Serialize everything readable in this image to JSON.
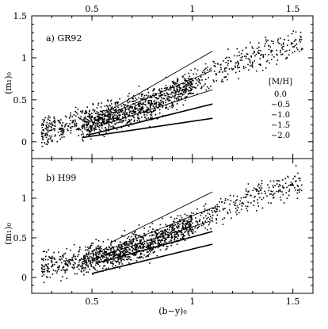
{
  "chart_data": [
    {
      "type": "scatter",
      "panel_label": "a) GR92",
      "xlabel": "",
      "ylabel": "(m₁)₀",
      "xlim": [
        0.2,
        1.6
      ],
      "ylim": [
        -0.2,
        1.5
      ],
      "x_ticks": [
        0.5,
        1,
        1.5
      ],
      "x_tick_labels": [
        "0.5",
        "1",
        "1.5"
      ],
      "x_tick_labels_position": "top",
      "y_ticks": [
        0,
        0.5,
        1,
        1.5
      ],
      "y_tick_labels": [
        "0",
        "0.5",
        "1",
        "1.5"
      ],
      "grid": false,
      "legend": {
        "title": "[M/H]",
        "placement": "right",
        "entries": [
          "0.0",
          "−0.5",
          "−1.0",
          "−1.5",
          "−2.0"
        ]
      },
      "lines": [
        {
          "metallicity": "0.0",
          "x": [
            0.55,
            1.1
          ],
          "y": [
            0.32,
            1.08
          ]
        },
        {
          "metallicity": "-0.5",
          "x": [
            0.52,
            1.1
          ],
          "y": [
            0.26,
            0.85
          ]
        },
        {
          "metallicity": "-1.0",
          "x": [
            0.5,
            1.1
          ],
          "y": [
            0.16,
            0.62
          ]
        },
        {
          "metallicity": "-1.5",
          "x": [
            0.48,
            1.1
          ],
          "y": [
            0.08,
            0.45
          ]
        },
        {
          "metallicity": "-2.0",
          "x": [
            0.45,
            1.1
          ],
          "y": [
            0.05,
            0.28
          ]
        }
      ],
      "point_cloud": {
        "n": 1400,
        "x_range": [
          0.25,
          1.55
        ],
        "trend": [
          [
            0.25,
            0.13
          ],
          [
            0.4,
            0.18
          ],
          [
            0.6,
            0.3
          ],
          [
            0.8,
            0.45
          ],
          [
            1.0,
            0.68
          ],
          [
            1.2,
            0.92
          ],
          [
            1.4,
            1.1
          ],
          [
            1.55,
            1.2
          ]
        ]
      }
    },
    {
      "type": "scatter",
      "panel_label": "b) H99",
      "xlabel": "(b−y)₀",
      "ylabel": "(m₁)₀",
      "xlim": [
        0.2,
        1.6
      ],
      "ylim": [
        -0.2,
        1.5
      ],
      "x_ticks": [
        0.5,
        1,
        1.5
      ],
      "x_tick_labels": [
        "0.5",
        "1",
        "1.5"
      ],
      "x_tick_labels_position": "bottom",
      "y_ticks": [
        0,
        0.5,
        1
      ],
      "y_tick_labels": [
        "0",
        "0.5",
        "1"
      ],
      "grid": false,
      "lines": [
        {
          "metallicity": "0.0",
          "x": [
            0.6,
            1.1
          ],
          "y": [
            0.45,
            1.08
          ]
        },
        {
          "metallicity": "-0.5",
          "x": [
            0.58,
            1.1
          ],
          "y": [
            0.35,
            0.88
          ]
        },
        {
          "metallicity": "-1.0",
          "x": [
            0.55,
            1.1
          ],
          "y": [
            0.28,
            0.72
          ]
        },
        {
          "metallicity": "-1.5",
          "x": [
            0.52,
            1.1
          ],
          "y": [
            0.18,
            0.58
          ]
        },
        {
          "metallicity": "-2.0",
          "x": [
            0.5,
            1.1
          ],
          "y": [
            0.05,
            0.42
          ]
        }
      ],
      "point_cloud": {
        "n": 1400,
        "x_range": [
          0.25,
          1.55
        ],
        "trend": [
          [
            0.25,
            0.13
          ],
          [
            0.4,
            0.18
          ],
          [
            0.6,
            0.3
          ],
          [
            0.8,
            0.45
          ],
          [
            1.0,
            0.68
          ],
          [
            1.2,
            0.92
          ],
          [
            1.4,
            1.1
          ],
          [
            1.55,
            1.2
          ]
        ]
      }
    }
  ]
}
